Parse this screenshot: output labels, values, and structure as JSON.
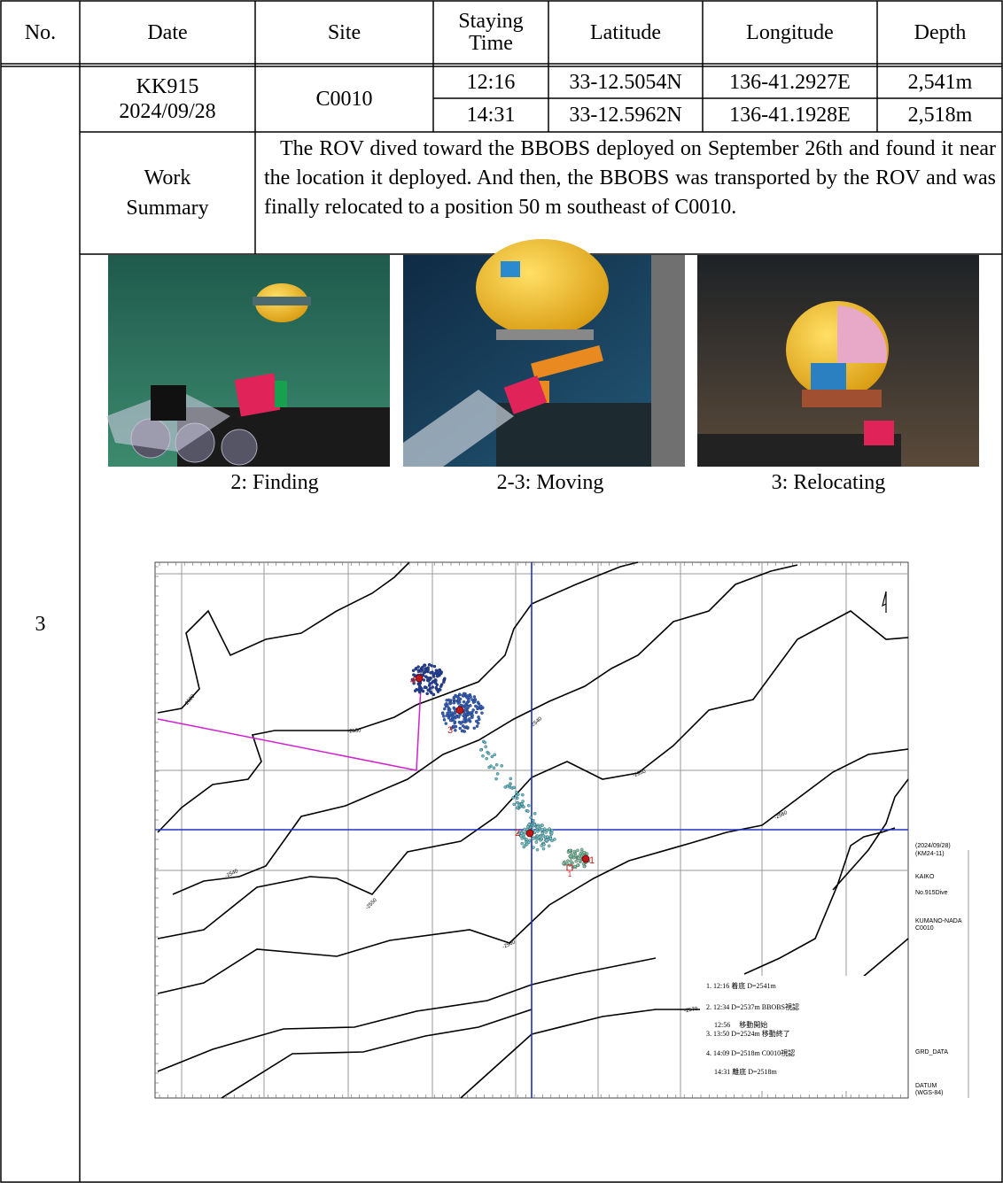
{
  "table": {
    "header": [
      "No.",
      "Date",
      "Site",
      "Staying Time",
      "Latitude",
      "Longitude",
      "Depth"
    ],
    "no": "3",
    "date": [
      "KK915",
      "2024/09/28"
    ],
    "site": "C0010",
    "rows": [
      [
        "12:16",
        "33-12.5054N",
        "136-41.2927E",
        "2,541m"
      ],
      [
        "14:31",
        "33-12.5962N",
        "136-41.1928E",
        "2,518m"
      ]
    ],
    "work_summary": {
      "label": "Work Summary",
      "text": "The ROV dived toward the BBOBS deployed on September 26th and found it near the location it deployed. And then, the BBOBS was transported by the ROV and was finally relocated to a position 50 m southeast of C0010."
    }
  },
  "photos": [
    {
      "caption": "2: Finding"
    },
    {
      "caption": "2-3: Moving"
    },
    {
      "caption": "3: Relocating"
    }
  ],
  "map": {
    "contour_labels": [
      "-2520",
      "-2530",
      "-2540",
      "-2550",
      "-2560",
      "-2540",
      "-2550",
      "-2560",
      "-2570"
    ],
    "markers": [
      "4",
      "3",
      "2",
      "1",
      "1"
    ],
    "legend": [
      "1. 12:16 着底 D=2541m",
      "2. 12:34 D=2537m BBOBS視認",
      "12:56 　移動開始",
      "3. 13:50 D=2524m 移動終了",
      "4. 14:09 D=2518m C0010視認",
      "14:31 離底 D=2518m"
    ],
    "info": [
      "(2024/09/28)",
      "(KM24-11)",
      "KAIKO",
      "No.915Dive",
      "KUMANO-NADA",
      "C0010",
      "GRD_DATA",
      "DATUM",
      "(WGS-84)"
    ]
  }
}
